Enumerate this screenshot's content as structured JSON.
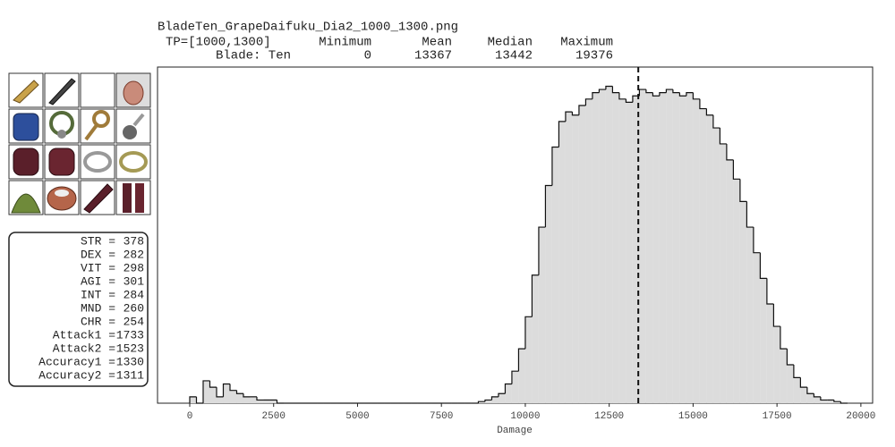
{
  "chart_data": {
    "type": "histogram",
    "title": "BladeTen_GrapeDaifuku_Dia2_1000_1300.png",
    "stats": {
      "header": "TP=[1000,1300]",
      "row": "Blade: Ten",
      "columns": [
        "Minimum",
        "Mean",
        "Median",
        "Maximum"
      ],
      "values": [
        0,
        13367,
        13442,
        19376
      ]
    },
    "x_label": "Damage",
    "xlim": [
      -960,
      20350
    ],
    "xticks": [
      0,
      2500,
      5000,
      7500,
      10000,
      12500,
      15000,
      17500,
      20000
    ],
    "ylim": [
      0,
      105
    ],
    "color": "#dcdcdc",
    "bins": [
      0,
      200,
      400,
      600,
      800,
      1000,
      1200,
      1400,
      1600,
      1800,
      2000,
      2200,
      2400,
      2600,
      2800,
      3000,
      3200,
      3400,
      3600,
      3800,
      4000,
      4200,
      4400,
      4600,
      4800,
      5000,
      5200,
      5400,
      5600,
      5800,
      6000,
      6200,
      6400,
      6600,
      6800,
      7000,
      7200,
      7400,
      7600,
      7800,
      8000,
      8200,
      8400,
      8600,
      8800,
      9000,
      9200,
      9400,
      9600,
      9800,
      10000,
      10200,
      10400,
      10600,
      10800,
      11000,
      11200,
      11400,
      11600,
      11800,
      12000,
      12200,
      12400,
      12600,
      12800,
      13000,
      13200,
      13400,
      13600,
      13800,
      14000,
      14200,
      14400,
      14600,
      14800,
      15000,
      15200,
      15400,
      15600,
      15800,
      16000,
      16200,
      16400,
      16600,
      16800,
      17000,
      17200,
      17400,
      17600,
      17800,
      18000,
      18200,
      18400,
      18600,
      18800,
      19000,
      19200,
      19400,
      19600
    ],
    "counts": [
      2,
      0,
      7,
      5,
      2,
      6,
      4,
      3,
      2,
      2,
      1,
      1,
      1,
      0,
      0,
      0,
      0,
      0,
      0,
      0,
      0,
      0,
      0,
      0,
      0,
      0,
      0,
      0,
      0,
      0,
      0,
      0,
      0,
      0,
      0,
      0,
      0,
      0,
      0,
      0,
      0,
      0,
      0,
      0.5,
      1,
      2,
      3,
      6,
      10,
      17,
      27,
      40,
      55,
      68,
      80,
      88,
      91,
      90,
      93,
      95,
      97,
      98,
      99,
      97,
      95,
      94,
      96,
      98,
      97,
      96,
      97,
      98,
      97,
      96,
      97,
      95,
      92,
      90,
      86,
      81,
      76,
      70,
      63,
      55,
      47,
      39,
      31,
      24,
      17,
      12,
      8,
      5,
      3,
      2,
      1,
      1,
      0.5,
      0
    ],
    "attributes": [
      {
        "label": "STR =",
        "value": 378
      },
      {
        "label": "DEX =",
        "value": 282
      },
      {
        "label": "VIT =",
        "value": 298
      },
      {
        "label": "AGI =",
        "value": 301
      },
      {
        "label": "INT =",
        "value": 284
      },
      {
        "label": "MND =",
        "value": 260
      },
      {
        "label": "CHR =",
        "value": 254
      },
      {
        "label": "Attack1 =",
        "value": 1733
      },
      {
        "label": "Attack2 =",
        "value": 1523
      },
      {
        "label": "Accuracy1 =",
        "value": 1330
      },
      {
        "label": "Accuracy2 =",
        "value": 1311
      }
    ]
  }
}
